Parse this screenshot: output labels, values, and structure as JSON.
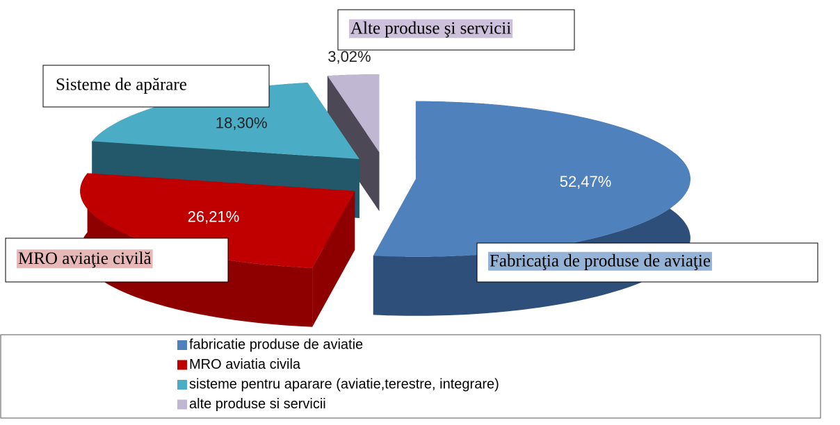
{
  "chart_data": {
    "type": "pie3d",
    "categories": [
      "fabricatie produse de aviatie",
      "MRO aviatia civila",
      "sisteme pentru aparare (aviatie,terestre, integrare)",
      "alte produse si servicii"
    ],
    "values": [
      52.47,
      26.21,
      18.3,
      3.02
    ],
    "value_labels": [
      "52,47%",
      "26,21%",
      "18,30%",
      "3,02%"
    ],
    "colors": [
      "#4f81bd",
      "#c00000",
      "#4bacc6",
      "#c0b8d2"
    ],
    "side_colors": [
      "#2d4f7a",
      "#8e0000",
      "#22586a",
      "#4c4856"
    ],
    "annotations": [
      {
        "text": "Fabricaţia de produse de aviaţie",
        "color": "#95b3d7"
      },
      {
        "text": "MRO aviaţie civilă",
        "color": "#e6b8b7"
      },
      {
        "text": "Sisteme de apărare",
        "color": "#ffffff"
      },
      {
        "text": "Alte produse şi servicii",
        "color": "#ccc0da"
      }
    ],
    "legend": "bottom"
  }
}
